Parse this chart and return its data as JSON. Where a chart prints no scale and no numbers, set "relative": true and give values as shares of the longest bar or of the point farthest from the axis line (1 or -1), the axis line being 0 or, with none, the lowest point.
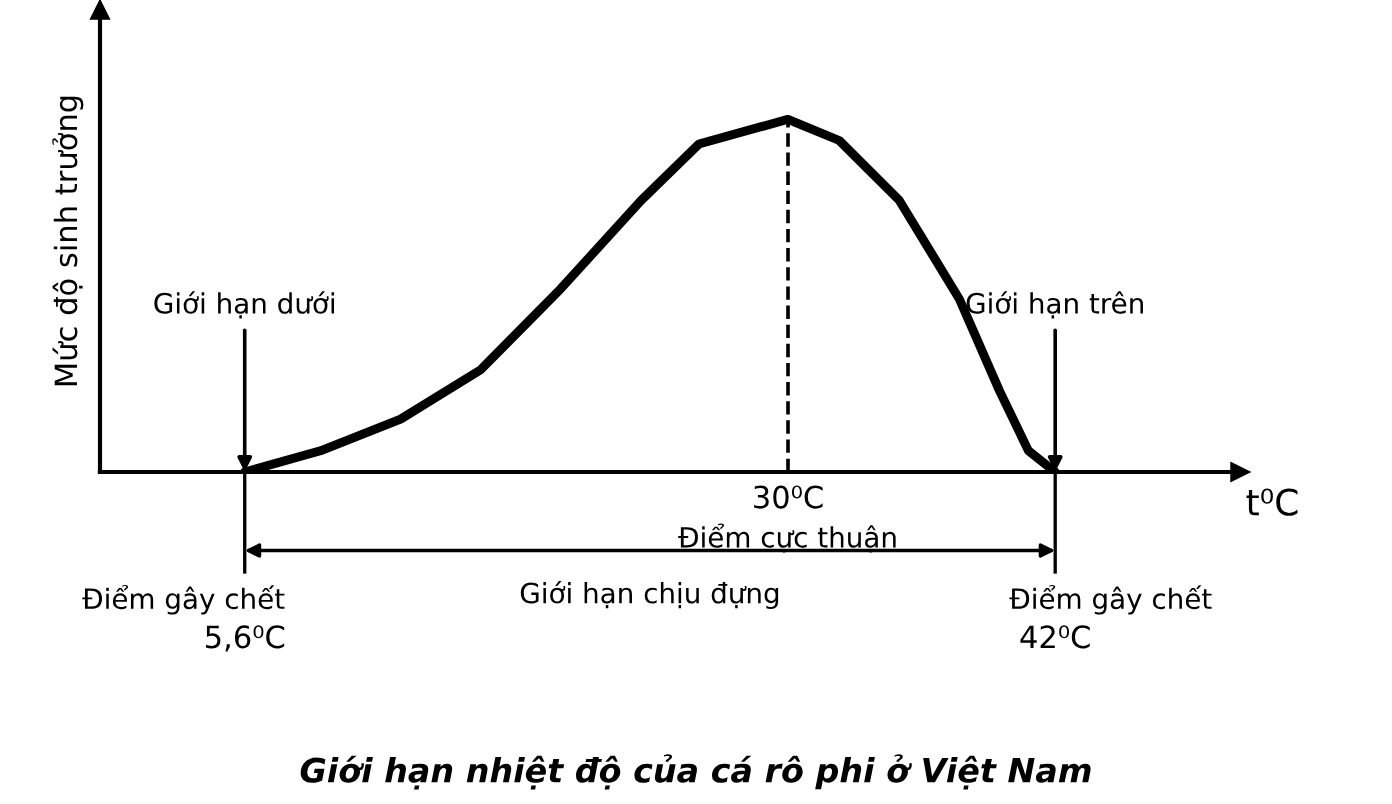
{
  "chart_data": {
    "type": "line",
    "relative": true,
    "title": "Giới hạn nhiệt độ của cá rô phi ở Việt Nam",
    "xlabel": "t⁰C",
    "ylabel": "Mức độ sinh trưởng",
    "x": [
      5.6,
      9.0,
      12.6,
      16.2,
      19.8,
      23.4,
      26.0,
      30,
      32.3,
      35.0,
      37.7,
      39.5,
      40.8,
      42
    ],
    "series": [
      {
        "color": "#000000",
        "values": [
          0,
          0.06,
          0.15,
          0.29,
          0.52,
          0.77,
          0.93,
          1,
          0.94,
          0.77,
          0.49,
          0.23,
          0.06,
          0
        ]
      }
    ],
    "xlim": [
      -0.9,
      50.3
    ],
    "xticks": [
      {
        "value": 5.6,
        "label": "5,6⁰C"
      },
      {
        "value": 42,
        "label": "42⁰C"
      }
    ],
    "legend": false,
    "marker": "none",
    "line_style": "solid",
    "ref_lines": [
      {
        "axis": "x",
        "value": 30,
        "label": "30⁰C",
        "color": "#000000",
        "line_style": "dashed"
      }
    ],
    "annotations": [
      {
        "text": "Giới hạn dưới",
        "x": 5.6,
        "y": 0
      },
      {
        "text": "Giới hạn trên",
        "x": 42,
        "y": 0
      },
      {
        "text": "Điểm cực thuận",
        "x": 30,
        "y": 0
      },
      {
        "text": "Điểm gây chết",
        "x": 5.6,
        "y": 0
      },
      {
        "text": "Điểm gây chết",
        "x": 42,
        "y": 0
      },
      "Giới hạn chịu đựng"
    ]
  }
}
